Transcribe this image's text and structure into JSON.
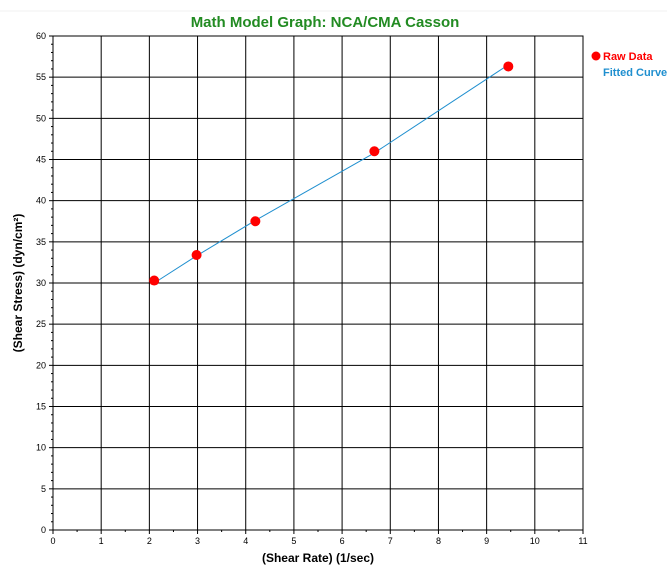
{
  "chart_data": {
    "type": "scatter",
    "title": "Math Model Graph: NCA/CMA Casson",
    "xlabel": "(Shear Rate) (1/sec)",
    "ylabel": "(Shear Stress) (dyn/cm²)",
    "xlim": [
      0,
      11
    ],
    "ylim": [
      0,
      60
    ],
    "x_ticks": [
      0,
      1,
      2,
      3,
      4,
      5,
      6,
      7,
      8,
      9,
      10,
      11
    ],
    "y_ticks": [
      0,
      5,
      10,
      15,
      20,
      25,
      30,
      35,
      40,
      45,
      50,
      55,
      60
    ],
    "grid": true,
    "legend_position": "right",
    "series": [
      {
        "name": "Raw Data",
        "kind": "scatter",
        "color": "#ff0000",
        "x": [
          2.1,
          2.98,
          4.2,
          6.67,
          9.45
        ],
        "y": [
          30.3,
          33.4,
          37.5,
          46.0,
          56.3
        ]
      },
      {
        "name": "Fitted Curve",
        "kind": "line",
        "color": "#1f8fcf",
        "x": [
          2.1,
          2.98,
          4.2,
          6.67,
          9.45
        ],
        "y": [
          30.0,
          33.3,
          37.6,
          45.8,
          56.5
        ]
      }
    ]
  },
  "colors": {
    "title": "#228b22",
    "grid": "#000000",
    "raw": "#ff0000",
    "fit": "#1f8fcf"
  }
}
